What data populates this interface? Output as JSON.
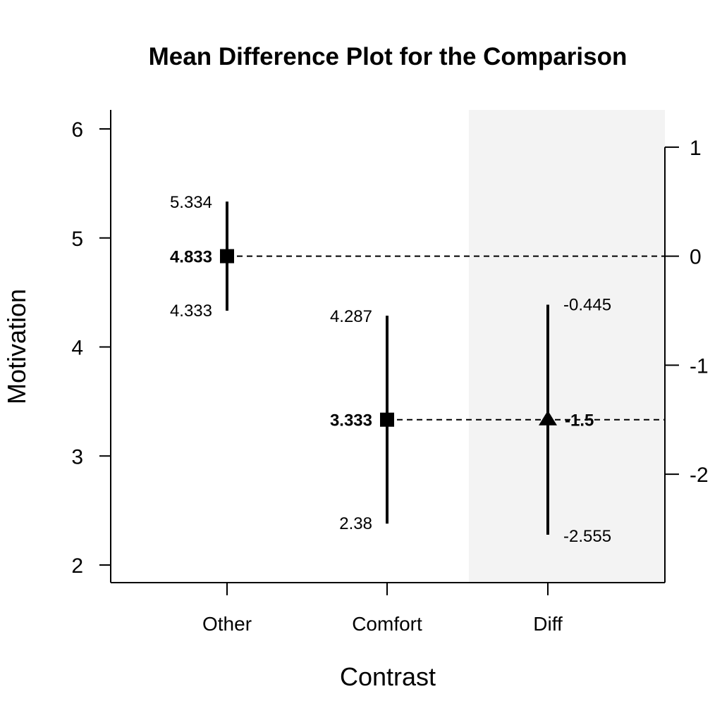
{
  "chart_data": {
    "type": "scatter",
    "title": "Mean Difference Plot for the Comparison",
    "xlabel": "Contrast",
    "ylabel": "Motivation",
    "categories": [
      "Other",
      "Comfort",
      "Diff"
    ],
    "left_axis": {
      "ylim": [
        1.85,
        6.2
      ],
      "ticks": [
        2,
        3,
        4,
        5,
        6
      ]
    },
    "right_axis": {
      "ticks": [
        -2,
        -1,
        0,
        1
      ],
      "anchor_mean": 4.833
    },
    "groups": [
      {
        "name": "Other",
        "mean": 4.833,
        "lower": 4.333,
        "upper": 5.334,
        "mean_label": "4.833",
        "lower_label": "4.333",
        "upper_label": "5.334",
        "marker": "square",
        "axis": "left"
      },
      {
        "name": "Comfort",
        "mean": 3.333,
        "lower": 2.38,
        "upper": 4.287,
        "mean_label": "3.333",
        "lower_label": "2.38",
        "upper_label": "4.287",
        "marker": "square",
        "axis": "left"
      },
      {
        "name": "Diff",
        "mean": -1.5,
        "lower": -2.555,
        "upper": -0.445,
        "mean_label": "-1.5",
        "lower_label": "-2.555",
        "upper_label": "-0.445",
        "marker": "triangle",
        "axis": "right"
      }
    ],
    "reference_lines": [
      {
        "from": "Other",
        "style": "dashed"
      },
      {
        "from": "Comfort",
        "style": "dashed"
      }
    ],
    "diff_region_color": "#f3f3f3",
    "grid": false
  }
}
